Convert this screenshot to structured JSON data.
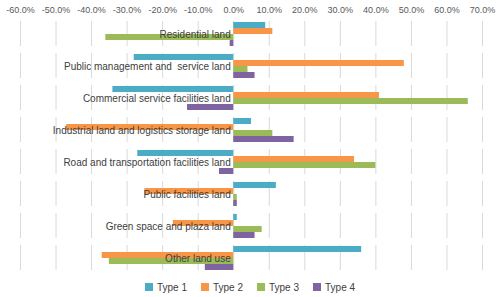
{
  "chart_data": {
    "type": "bar",
    "orientation": "horizontal",
    "grid": true,
    "legend": "bottom",
    "categories": [
      "Residential land",
      "Public management and  service land",
      "Commercial service facilities land",
      "Industrial land and logistics storage land",
      "Road and transportation facilities land",
      "Public facilities land",
      "Green space and plaza land",
      "Other land use"
    ],
    "series": [
      {
        "name": "Type 1",
        "color": "#4bacc6",
        "values": [
          9,
          -28,
          -34,
          5,
          -27,
          12,
          1,
          36
        ]
      },
      {
        "name": "Type 2",
        "color": "#f79646",
        "values": [
          11,
          48,
          41,
          -47,
          34,
          -25,
          -17,
          -37
        ]
      },
      {
        "name": "Type 3",
        "color": "#9bbb59",
        "values": [
          -36,
          4,
          66,
          11,
          40,
          1,
          8,
          -35
        ]
      },
      {
        "name": "Type 4",
        "color": "#8064a2",
        "values": [
          -1,
          6,
          -13,
          17,
          -4,
          1,
          6,
          -8
        ]
      }
    ],
    "xlim": [
      -60,
      70
    ],
    "xticks": [
      {
        "value": -60,
        "label": "-60.0%"
      },
      {
        "value": -50,
        "label": "-50.0%"
      },
      {
        "value": -40,
        "label": "-40.0%"
      },
      {
        "value": -30,
        "label": "-30.0%"
      },
      {
        "value": -20,
        "label": "-20.0%"
      },
      {
        "value": -10,
        "label": "-10.0%"
      },
      {
        "value": 0,
        "label": "0.0%"
      },
      {
        "value": 10,
        "label": "10.0%"
      },
      {
        "value": 20,
        "label": "20.0%"
      },
      {
        "value": 30,
        "label": "30.0%"
      },
      {
        "value": 40,
        "label": "40.0%"
      },
      {
        "value": 50,
        "label": "50.0%"
      },
      {
        "value": 60,
        "label": "60.0%"
      },
      {
        "value": 70,
        "label": "70.0%"
      }
    ]
  }
}
